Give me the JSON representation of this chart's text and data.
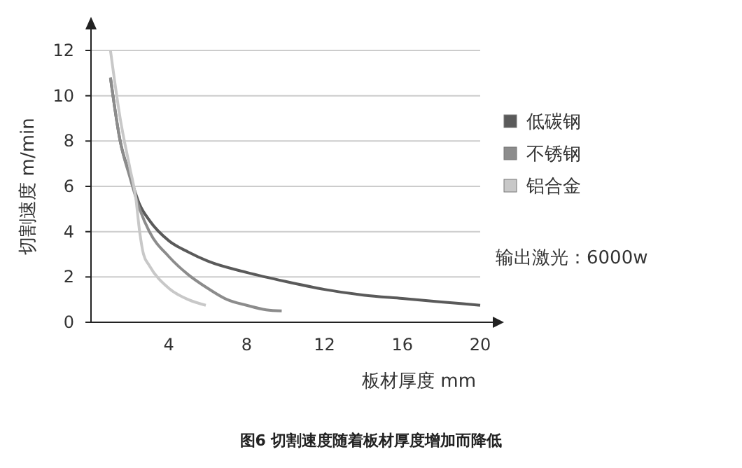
{
  "chart_data": {
    "type": "line",
    "xlabel": "板材厚度  mm",
    "ylabel": "切割速度  m/min",
    "xlim": [
      0,
      20
    ],
    "xticks": [
      4,
      8,
      12,
      16,
      20
    ],
    "ylim": [
      0,
      12
    ],
    "yticks": [
      0,
      2,
      4,
      6,
      8,
      10,
      12
    ],
    "grid": "y",
    "legend": "right",
    "marker": "none",
    "line_style": "solid",
    "annotations": [
      "输出激光：6000w",
      "图6 切割速度随着板材厚度增加而降低"
    ],
    "series": [
      {
        "name": "低碳钢",
        "color": "#5a5a5a",
        "x": [
          1,
          1.5,
          2,
          2.5,
          3,
          4,
          5,
          6,
          8,
          10,
          12,
          14,
          16,
          18,
          20
        ],
        "values": [
          10.8,
          8,
          6.5,
          5.2,
          4.5,
          3.6,
          3.1,
          2.7,
          2.2,
          1.8,
          1.45,
          1.2,
          1.05,
          0.9,
          0.75
        ]
      },
      {
        "name": "不锈钢",
        "color": "#8c8c8c",
        "x": [
          1,
          1.5,
          2,
          2.5,
          3,
          4,
          5,
          6,
          7,
          8,
          9,
          9.8
        ],
        "values": [
          10.8,
          8,
          6.4,
          5,
          4,
          2.9,
          2.1,
          1.5,
          1.0,
          0.75,
          0.55,
          0.5
        ]
      },
      {
        "name": "铝合金",
        "color": "#c8c8c8",
        "x": [
          1,
          1.5,
          2,
          2.3,
          2.5,
          2.7,
          3,
          4,
          5,
          5.9
        ],
        "values": [
          12,
          9,
          6.8,
          5.5,
          4,
          3,
          2.5,
          1.5,
          1.0,
          0.75
        ]
      }
    ]
  }
}
